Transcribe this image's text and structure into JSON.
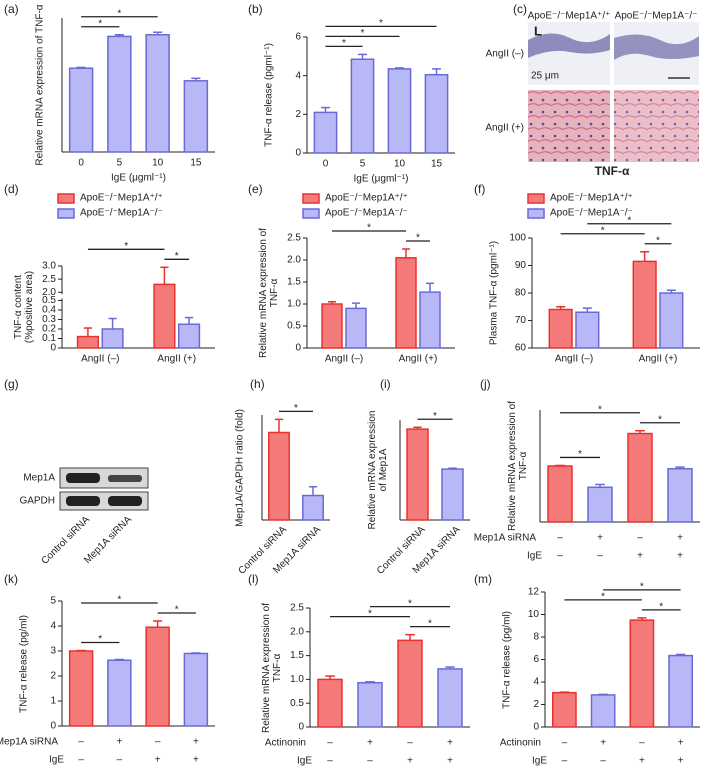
{
  "chart_data": [
    {
      "type": "bar",
      "panel": "(a)",
      "ylabel": "Relative mRNA expression of TNF-α",
      "xlabel": "IgE (μgml⁻¹)",
      "categories": [
        "0",
        "5",
        "10",
        "15"
      ],
      "values": [
        1.0,
        1.38,
        1.4,
        0.85
      ],
      "errors": [
        0.01,
        0.02,
        0.03,
        0.03
      ],
      "colors": [
        "#b8b8f6",
        "#b8b8f6",
        "#b8b8f6",
        "#b8b8f6"
      ],
      "edge_colors": [
        "#6a6ad6",
        "#6a6ad6",
        "#6a6ad6",
        "#6a6ad6"
      ],
      "ylim": [
        0,
        1.6
      ],
      "brackets": [
        {
          "from": 0,
          "to": 1,
          "text": "*"
        },
        {
          "from": 0,
          "to": 2,
          "text": "*"
        }
      ]
    },
    {
      "type": "bar",
      "panel": "(b)",
      "ylabel": "TNF-α release (pgml⁻¹)",
      "xlabel": "IgE (μgml⁻¹)",
      "categories": [
        "0",
        "5",
        "10",
        "15"
      ],
      "values": [
        2.1,
        4.85,
        4.35,
        4.05
      ],
      "errors": [
        0.25,
        0.25,
        0.05,
        0.3
      ],
      "colors": [
        "#b8b8f6",
        "#b8b8f6",
        "#b8b8f6",
        "#b8b8f6"
      ],
      "edge_colors": [
        "#6a6ad6",
        "#6a6ad6",
        "#6a6ad6",
        "#6a6ad6"
      ],
      "ylim": [
        0,
        6
      ],
      "yticks": [
        0,
        2,
        4,
        6
      ],
      "brackets": [
        {
          "from": 0,
          "to": 1,
          "text": "*"
        },
        {
          "from": 0,
          "to": 2,
          "text": "*"
        },
        {
          "from": 0,
          "to": 3,
          "text": "*"
        }
      ]
    },
    {
      "type": "grouped_bar",
      "panel": "(d)",
      "ylabel": "TNF-α content (%positive area)",
      "categories": [
        "AngII (–)",
        "AngII (+)"
      ],
      "series": [
        {
          "name": "ApoE⁻/⁻Mep1A⁺/⁺",
          "color": "#f47a7a",
          "edge_color": "#e8322f",
          "values": [
            0.12,
            2.3
          ],
          "errors": [
            0.09,
            0.65
          ]
        },
        {
          "name": "ApoE⁻/⁻Mep1A⁻/⁻",
          "color": "#b8b8f6",
          "edge_color": "#6a6ad6",
          "values": [
            0.2,
            0.25
          ],
          "errors": [
            0.11,
            0.07
          ]
        }
      ],
      "ylim": [
        0,
        3
      ],
      "ybreak": [
        0.5,
        2
      ],
      "yticks": [
        0,
        0.1,
        0.2,
        0.3,
        0.4,
        0.5,
        {
          "value": 2,
          "label": "2.0"
        },
        2.5,
        {
          "value": 3,
          "label": "3.0"
        }
      ],
      "legend": "top",
      "brackets": [
        {
          "from": [
            1,
            0
          ],
          "to": [
            1,
            1
          ],
          "text": "*"
        },
        {
          "from": [
            0,
            0
          ],
          "to": [
            1,
            0
          ],
          "text": "*"
        }
      ]
    },
    {
      "type": "grouped_bar",
      "panel": "(e)",
      "ylabel": "Relative mRNA expression of TNF-α",
      "categories": [
        "AngII (–)",
        "AngII (+)"
      ],
      "series": [
        {
          "name": "ApoE⁻/⁻Mep1A⁺/⁺",
          "color": "#f47a7a",
          "edge_color": "#e8322f",
          "values": [
            1.0,
            2.05
          ],
          "errors": [
            0.05,
            0.2
          ]
        },
        {
          "name": "ApoE⁻/⁻Mep1A⁻/⁻",
          "color": "#b8b8f6",
          "edge_color": "#6a6ad6",
          "values": [
            0.9,
            1.27
          ],
          "errors": [
            0.12,
            0.2
          ]
        }
      ],
      "ylim": [
        0,
        2.5
      ],
      "yticks": [
        0,
        0.5,
        {
          "value": 1,
          "label": "1.0"
        },
        1.5,
        {
          "value": 2,
          "label": "2.0"
        },
        2.5
      ],
      "legend": "top",
      "brackets": [
        {
          "from": [
            1,
            0
          ],
          "to": [
            1,
            1
          ],
          "text": "*"
        },
        {
          "from": [
            0,
            0
          ],
          "to": [
            1,
            0
          ],
          "text": "*"
        }
      ]
    },
    {
      "type": "grouped_bar",
      "panel": "(f)",
      "ylabel": "Plasma TNF-α (pgml⁻¹)",
      "categories": [
        "AngII (–)",
        "AngII (+)"
      ],
      "series": [
        {
          "name": "ApoE⁻/⁻Mep1A⁺/⁺",
          "color": "#f47a7a",
          "edge_color": "#e8322f",
          "values": [
            74,
            91.5
          ],
          "errors": [
            1,
            3.5
          ]
        },
        {
          "name": "ApoE⁻/⁻Mep1A⁻/⁻",
          "color": "#b8b8f6",
          "edge_color": "#6a6ad6",
          "values": [
            73,
            80
          ],
          "errors": [
            1.5,
            1
          ]
        }
      ],
      "ylim": [
        60,
        100
      ],
      "yticks": [
        60,
        70,
        80,
        90,
        100
      ],
      "legend": "top",
      "brackets": [
        {
          "from": [
            1,
            0
          ],
          "to": [
            1,
            1
          ],
          "text": "*"
        },
        {
          "from": [
            0,
            0
          ],
          "to": [
            1,
            0
          ],
          "text": "*"
        },
        {
          "from": [
            0,
            1
          ],
          "to": [
            1,
            1
          ],
          "text": "*"
        }
      ]
    },
    {
      "type": "bar",
      "panel": "(h)",
      "ylabel": "Mep1A/GAPDH ratio (fold)",
      "categories": [
        "Control siRNA",
        "Mep1A siRNA"
      ],
      "values": [
        1.0,
        0.28
      ],
      "errors": [
        0.15,
        0.1
      ],
      "colors": [
        "#f47a7a",
        "#b8b8f6"
      ],
      "edge_colors": [
        "#e8322f",
        "#6a6ad6"
      ],
      "ylim": [
        0,
        1.2
      ],
      "brackets": [
        {
          "from": 0,
          "to": 1,
          "text": "*"
        }
      ]
    },
    {
      "type": "bar",
      "panel": "(i)",
      "ylabel": "Relative mRNA expression of Mep1A",
      "categories": [
        "Control siRNA",
        "Mep1A siRNA"
      ],
      "values": [
        1.0,
        0.56
      ],
      "errors": [
        0.02,
        0.01
      ],
      "colors": [
        "#f47a7a",
        "#b8b8f6"
      ],
      "edge_colors": [
        "#e8322f",
        "#6a6ad6"
      ],
      "ylim": [
        0,
        1.1
      ],
      "brackets": [
        {
          "from": 0,
          "to": 1,
          "text": "*"
        }
      ]
    },
    {
      "type": "bar",
      "panel": "(j)",
      "ylabel": "Relative mRNA expression of TNF-α",
      "values": [
        1.0,
        0.62,
        1.58,
        0.95
      ],
      "errors": [
        0.01,
        0.05,
        0.05,
        0.03
      ],
      "colors": [
        "#f47a7a",
        "#b8b8f6",
        "#f47a7a",
        "#b8b8f6"
      ],
      "edge_colors": [
        "#e8322f",
        "#6a6ad6",
        "#e8322f",
        "#6a6ad6"
      ],
      "ylim": [
        0,
        2
      ],
      "conditions": [
        {
          "name": "Mep1A siRNA",
          "values": [
            "–",
            "+",
            "–",
            "+"
          ]
        },
        {
          "name": "IgE",
          "values": [
            "–",
            "–",
            "+",
            "+"
          ]
        }
      ],
      "brackets": [
        {
          "from": 0,
          "to": 1,
          "text": "*"
        },
        {
          "from": 2,
          "to": 3,
          "text": "*"
        },
        {
          "from": 0,
          "to": 2,
          "text": "*"
        }
      ]
    },
    {
      "type": "bar",
      "panel": "(k)",
      "ylabel": "TNF-α release (pg/ml)",
      "values": [
        3.0,
        2.63,
        3.95,
        2.9
      ],
      "errors": [
        0.02,
        0.03,
        0.25,
        0.02
      ],
      "colors": [
        "#f47a7a",
        "#b8b8f6",
        "#f47a7a",
        "#b8b8f6"
      ],
      "edge_colors": [
        "#e8322f",
        "#6a6ad6",
        "#e8322f",
        "#6a6ad6"
      ],
      "ylim": [
        0,
        5
      ],
      "yticks": [
        0,
        1,
        2,
        3,
        4,
        5
      ],
      "conditions": [
        {
          "name": "Mep1A siRNA",
          "values": [
            "–",
            "+",
            "–",
            "+"
          ]
        },
        {
          "name": "IgE",
          "values": [
            "–",
            "–",
            "+",
            "+"
          ]
        }
      ],
      "brackets": [
        {
          "from": 0,
          "to": 1,
          "text": "*"
        },
        {
          "from": 2,
          "to": 3,
          "text": "*"
        },
        {
          "from": 0,
          "to": 2,
          "text": "*"
        }
      ]
    },
    {
      "type": "bar",
      "panel": "(l)",
      "ylabel": "Relative mRNA expression of TNF-α",
      "values": [
        1.0,
        0.93,
        1.82,
        1.22
      ],
      "errors": [
        0.07,
        0.02,
        0.12,
        0.04
      ],
      "colors": [
        "#f47a7a",
        "#b8b8f6",
        "#f47a7a",
        "#b8b8f6"
      ],
      "edge_colors": [
        "#e8322f",
        "#6a6ad6",
        "#e8322f",
        "#6a6ad6"
      ],
      "ylim": [
        0,
        2.5
      ],
      "yticks": [
        0,
        0.5,
        {
          "value": 1,
          "label": "1.0"
        },
        1.5,
        {
          "value": 2,
          "label": "2.0"
        },
        2.5
      ],
      "conditions": [
        {
          "name": "Actinonin",
          "values": [
            "–",
            "+",
            "–",
            "+"
          ]
        },
        {
          "name": "IgE",
          "values": [
            "–",
            "–",
            "+",
            "+"
          ]
        }
      ],
      "brackets": [
        {
          "from": 2,
          "to": 3,
          "text": "*"
        },
        {
          "from": 0,
          "to": 2,
          "text": "*"
        },
        {
          "from": 1,
          "to": 3,
          "text": "*"
        }
      ]
    },
    {
      "type": "bar",
      "panel": "(m)",
      "ylabel": "TNF-α release (pg/ml)",
      "values": [
        3.05,
        2.85,
        9.5,
        6.35
      ],
      "errors": [
        0.05,
        0.05,
        0.2,
        0.1
      ],
      "colors": [
        "#f47a7a",
        "#b8b8f6",
        "#f47a7a",
        "#b8b8f6"
      ],
      "edge_colors": [
        "#e8322f",
        "#6a6ad6",
        "#e8322f",
        "#6a6ad6"
      ],
      "ylim": [
        0,
        12
      ],
      "yticks": [
        0,
        2,
        4,
        6,
        8,
        10,
        12
      ],
      "conditions": [
        {
          "name": "Actinonin",
          "values": [
            "–",
            "+",
            "–",
            "+"
          ]
        },
        {
          "name": "IgE",
          "values": [
            "–",
            "–",
            "+",
            "+"
          ]
        }
      ],
      "brackets": [
        {
          "from": 2,
          "to": 3,
          "text": "*"
        },
        {
          "from": 0,
          "to": 2,
          "text": "*"
        },
        {
          "from": 1,
          "to": 3,
          "text": "*"
        }
      ]
    }
  ],
  "histology": {
    "panel": "(c)",
    "columns": [
      "ApoE⁻/⁻Mep1A⁺/⁺",
      "ApoE⁻/⁻Mep1A⁻/⁻"
    ],
    "rows": [
      "AngII (–)",
      "AngII (+)"
    ],
    "inset": "L",
    "scale_bar": "25 μm",
    "caption": "TNF-α"
  },
  "western_blot": {
    "panel": "(g)",
    "rows": [
      "Mep1A",
      "GAPDH"
    ],
    "columns": [
      "Control siRNA",
      "Mep1A siRNA"
    ]
  }
}
